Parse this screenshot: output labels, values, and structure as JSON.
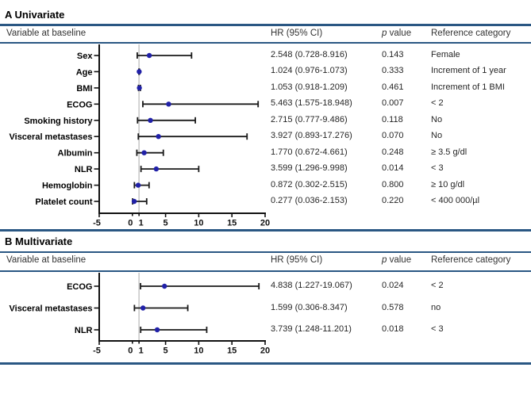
{
  "colors": {
    "rule_blue": "#2a5783",
    "point_navy": "#2121a8",
    "error_bar_black": "#1a1a1a",
    "reference_line_gray": "#c9c9c9"
  },
  "table": {
    "variable_header": "Variable at baseline",
    "hr_header": "HR (95% CI)",
    "p_header_italic": "p",
    "p_header_rest": " value",
    "ref_header": "Reference category"
  },
  "chart_data": [
    {
      "type": "scatter",
      "variant": "forest plot (points with horizontal 95% CI error bars)",
      "title": "A Univariate",
      "legend": "none",
      "grid": false,
      "x_axis": {
        "min": -5,
        "max": 20,
        "ticks": [
          -5,
          0,
          1,
          5,
          10,
          15,
          20
        ],
        "reference_line": 1
      },
      "rows": [
        {
          "label": "Sex",
          "hr": 2.548,
          "ci_low": 0.728,
          "ci_high": 8.916,
          "hr_text": "2.548 (0.728-8.916)",
          "p_value": "0.143",
          "reference": "Female"
        },
        {
          "label": "Age",
          "hr": 1.024,
          "ci_low": 0.976,
          "ci_high": 1.073,
          "hr_text": "1.024 (0.976-1.073)",
          "p_value": "0.333",
          "reference": "Increment of 1 year"
        },
        {
          "label": "BMI",
          "hr": 1.053,
          "ci_low": 0.918,
          "ci_high": 1.209,
          "hr_text": "1.053 (0.918-1.209)",
          "p_value": "0.461",
          "reference": "Increment of 1 BMI"
        },
        {
          "label": "ECOG",
          "hr": 5.463,
          "ci_low": 1.575,
          "ci_high": 18.948,
          "hr_text": "5.463 (1.575-18.948)",
          "p_value": "0.007",
          "reference": "< 2"
        },
        {
          "label": "Smoking history",
          "hr": 2.715,
          "ci_low": 0.777,
          "ci_high": 9.486,
          "hr_text": "2.715 (0.777-9.486)",
          "p_value": "0.118",
          "reference": "No"
        },
        {
          "label": "Visceral metastases",
          "hr": 3.927,
          "ci_low": 0.893,
          "ci_high": 17.276,
          "hr_text": "3.927 (0.893-17.276)",
          "p_value": "0.070",
          "reference": "No"
        },
        {
          "label": "Albumin",
          "hr": 1.77,
          "ci_low": 0.672,
          "ci_high": 4.661,
          "hr_text": "1.770 (0.672-4.661)",
          "p_value": "0.248",
          "reference": "≥ 3.5 g/dl"
        },
        {
          "label": "NLR",
          "hr": 3.599,
          "ci_low": 1.296,
          "ci_high": 9.998,
          "hr_text": "3.599 (1.296-9.998)",
          "p_value": "0.014",
          "reference": "< 3"
        },
        {
          "label": "Hemoglobin",
          "hr": 0.872,
          "ci_low": 0.302,
          "ci_high": 2.515,
          "hr_text": "0.872 (0.302-2.515)",
          "p_value": "0.800",
          "reference": "≥ 10 g/dl"
        },
        {
          "label": "Platelet count",
          "hr": 0.277,
          "ci_low": 0.036,
          "ci_high": 2.153,
          "hr_text": "0.277 (0.036-2.153)",
          "p_value": "0.220",
          "reference": "< 400 000/µl"
        }
      ]
    },
    {
      "type": "scatter",
      "variant": "forest plot (points with horizontal 95% CI error bars)",
      "title": "B Multivariate",
      "legend": "none",
      "grid": false,
      "x_axis": {
        "min": -5,
        "max": 20,
        "ticks": [
          -5,
          0,
          1,
          5,
          10,
          15,
          20
        ],
        "reference_line": 1
      },
      "rows": [
        {
          "label": "ECOG",
          "hr": 4.838,
          "ci_low": 1.227,
          "ci_high": 19.067,
          "hr_text": "4.838 (1.227-19.067)",
          "p_value": "0.024",
          "reference": "< 2"
        },
        {
          "label": "Visceral metastases",
          "hr": 1.599,
          "ci_low": 0.306,
          "ci_high": 8.347,
          "hr_text": "1.599 (0.306-8.347)",
          "p_value": "0.578",
          "reference": "no"
        },
        {
          "label": "NLR",
          "hr": 3.739,
          "ci_low": 1.248,
          "ci_high": 11.201,
          "hr_text": "3.739 (1.248-11.201)",
          "p_value": "0.018",
          "reference": "< 3"
        }
      ]
    }
  ]
}
